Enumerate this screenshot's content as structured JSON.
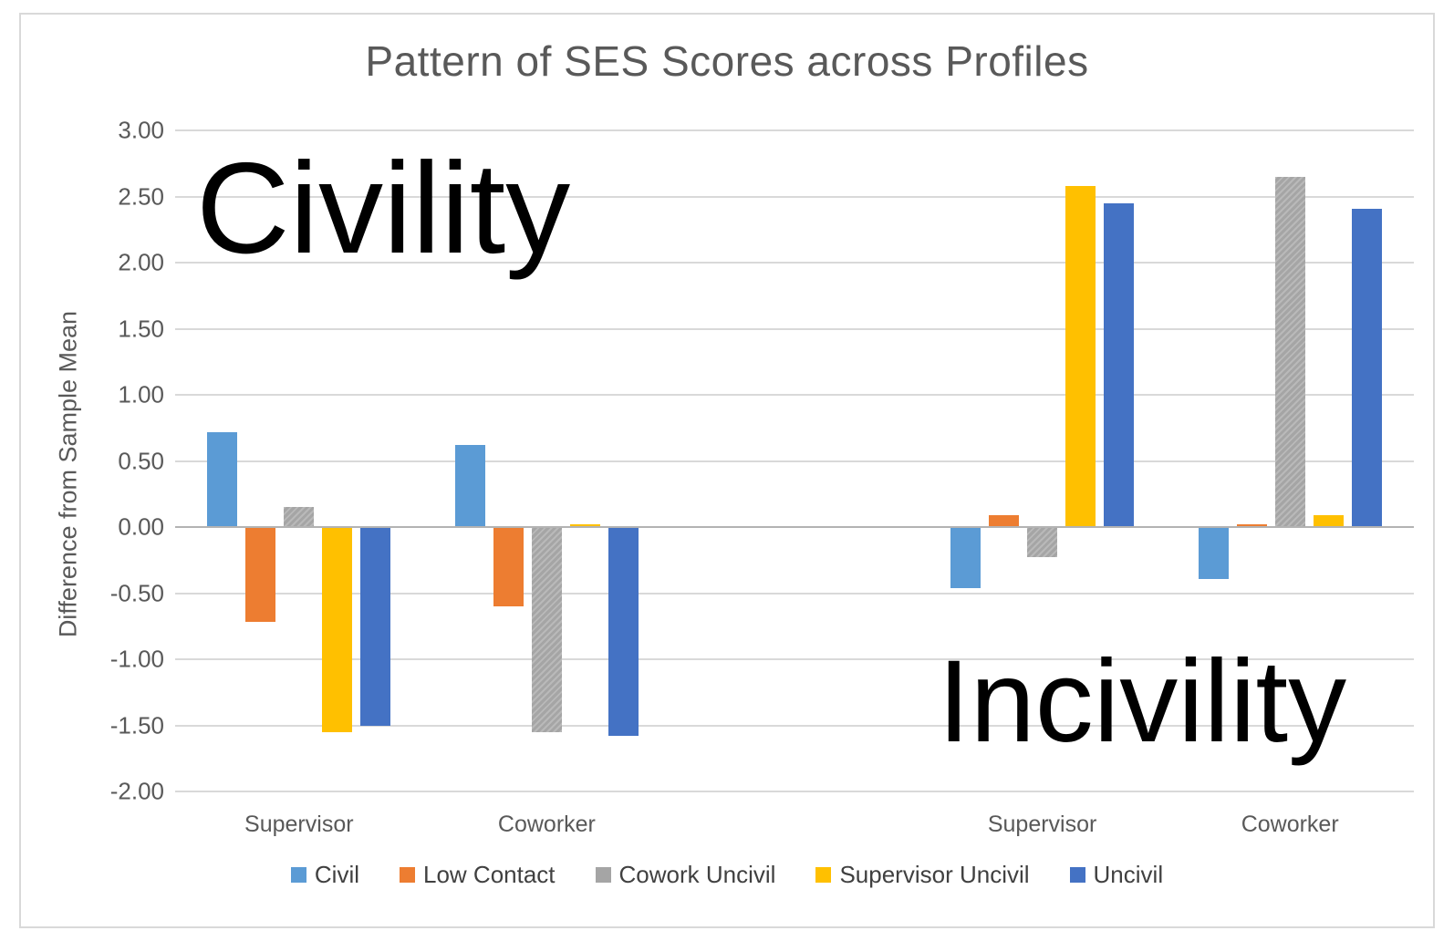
{
  "chart_data": {
    "type": "bar",
    "title": "Pattern of SES Scores across Profiles",
    "ylabel": "Difference from Sample Mean",
    "ylim": [
      -2.0,
      3.0
    ],
    "ytick_step": 0.5,
    "ytick_labels": [
      "3.00",
      "2.50",
      "2.00",
      "1.50",
      "1.00",
      "0.50",
      "0.00",
      "-0.50",
      "-1.00",
      "-1.50",
      "-2.00"
    ],
    "categories": [
      "Supervisor",
      "Coworker",
      "Supervisor",
      "Coworker"
    ],
    "panel_annotations": [
      {
        "text": "Civility",
        "side": "left"
      },
      {
        "text": "Incivility",
        "side": "right"
      }
    ],
    "series": [
      {
        "name": "Civil",
        "color": "#5B9BD5",
        "values": [
          0.72,
          0.62,
          -0.46,
          -0.39
        ]
      },
      {
        "name": "Low Contact",
        "color": "#ED7D31",
        "values": [
          -0.72,
          -0.6,
          0.09,
          0.02
        ]
      },
      {
        "name": "Cowork Uncivil",
        "color": "#A5A5A5",
        "values": [
          0.15,
          -1.55,
          -0.23,
          2.65
        ]
      },
      {
        "name": "Supervisor Uncivil",
        "color": "#FFC000",
        "values": [
          -1.55,
          0.02,
          2.58,
          0.09
        ]
      },
      {
        "name": "Uncivil",
        "color": "#4472C4",
        "values": [
          -1.5,
          -1.58,
          2.45,
          2.41
        ]
      }
    ],
    "legend_position": "bottom",
    "grid": true,
    "axis_text_color": "#595959",
    "gridline_color": "#d9d9d9"
  }
}
